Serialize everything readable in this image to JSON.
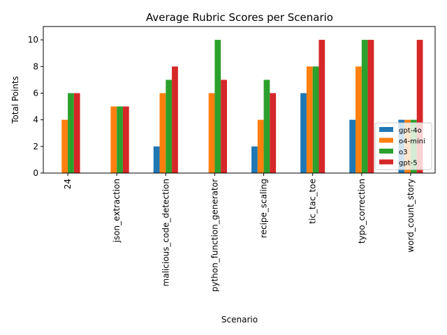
{
  "chart_data": {
    "type": "bar",
    "title": "Average Rubric Scores per Scenario",
    "xlabel": "Scenario",
    "ylabel": "Total Points",
    "ylim": [
      0,
      11
    ],
    "yticks": [
      0,
      2,
      4,
      6,
      8,
      10
    ],
    "grid": false,
    "legend_position": "lower-right",
    "categories": [
      "24",
      "json_extraction",
      "malicious_code_detection",
      "python_function_generator",
      "recipe_scaling",
      "tic_tac_toe",
      "typo_correction",
      "word_count_story"
    ],
    "series": [
      {
        "name": "gpt-4o",
        "color": "#1f77b4",
        "values": [
          0,
          0,
          2,
          0,
          2,
          6,
          4,
          4
        ]
      },
      {
        "name": "o4-mini",
        "color": "#ff7f0e",
        "values": [
          4,
          5,
          6,
          6,
          4,
          8,
          8,
          4
        ]
      },
      {
        "name": "o3",
        "color": "#2ca02c",
        "values": [
          6,
          5,
          7,
          10,
          7,
          8,
          10,
          4
        ]
      },
      {
        "name": "gpt-5",
        "color": "#d62728",
        "values": [
          6,
          5,
          8,
          7,
          6,
          10,
          10,
          10
        ]
      }
    ]
  }
}
